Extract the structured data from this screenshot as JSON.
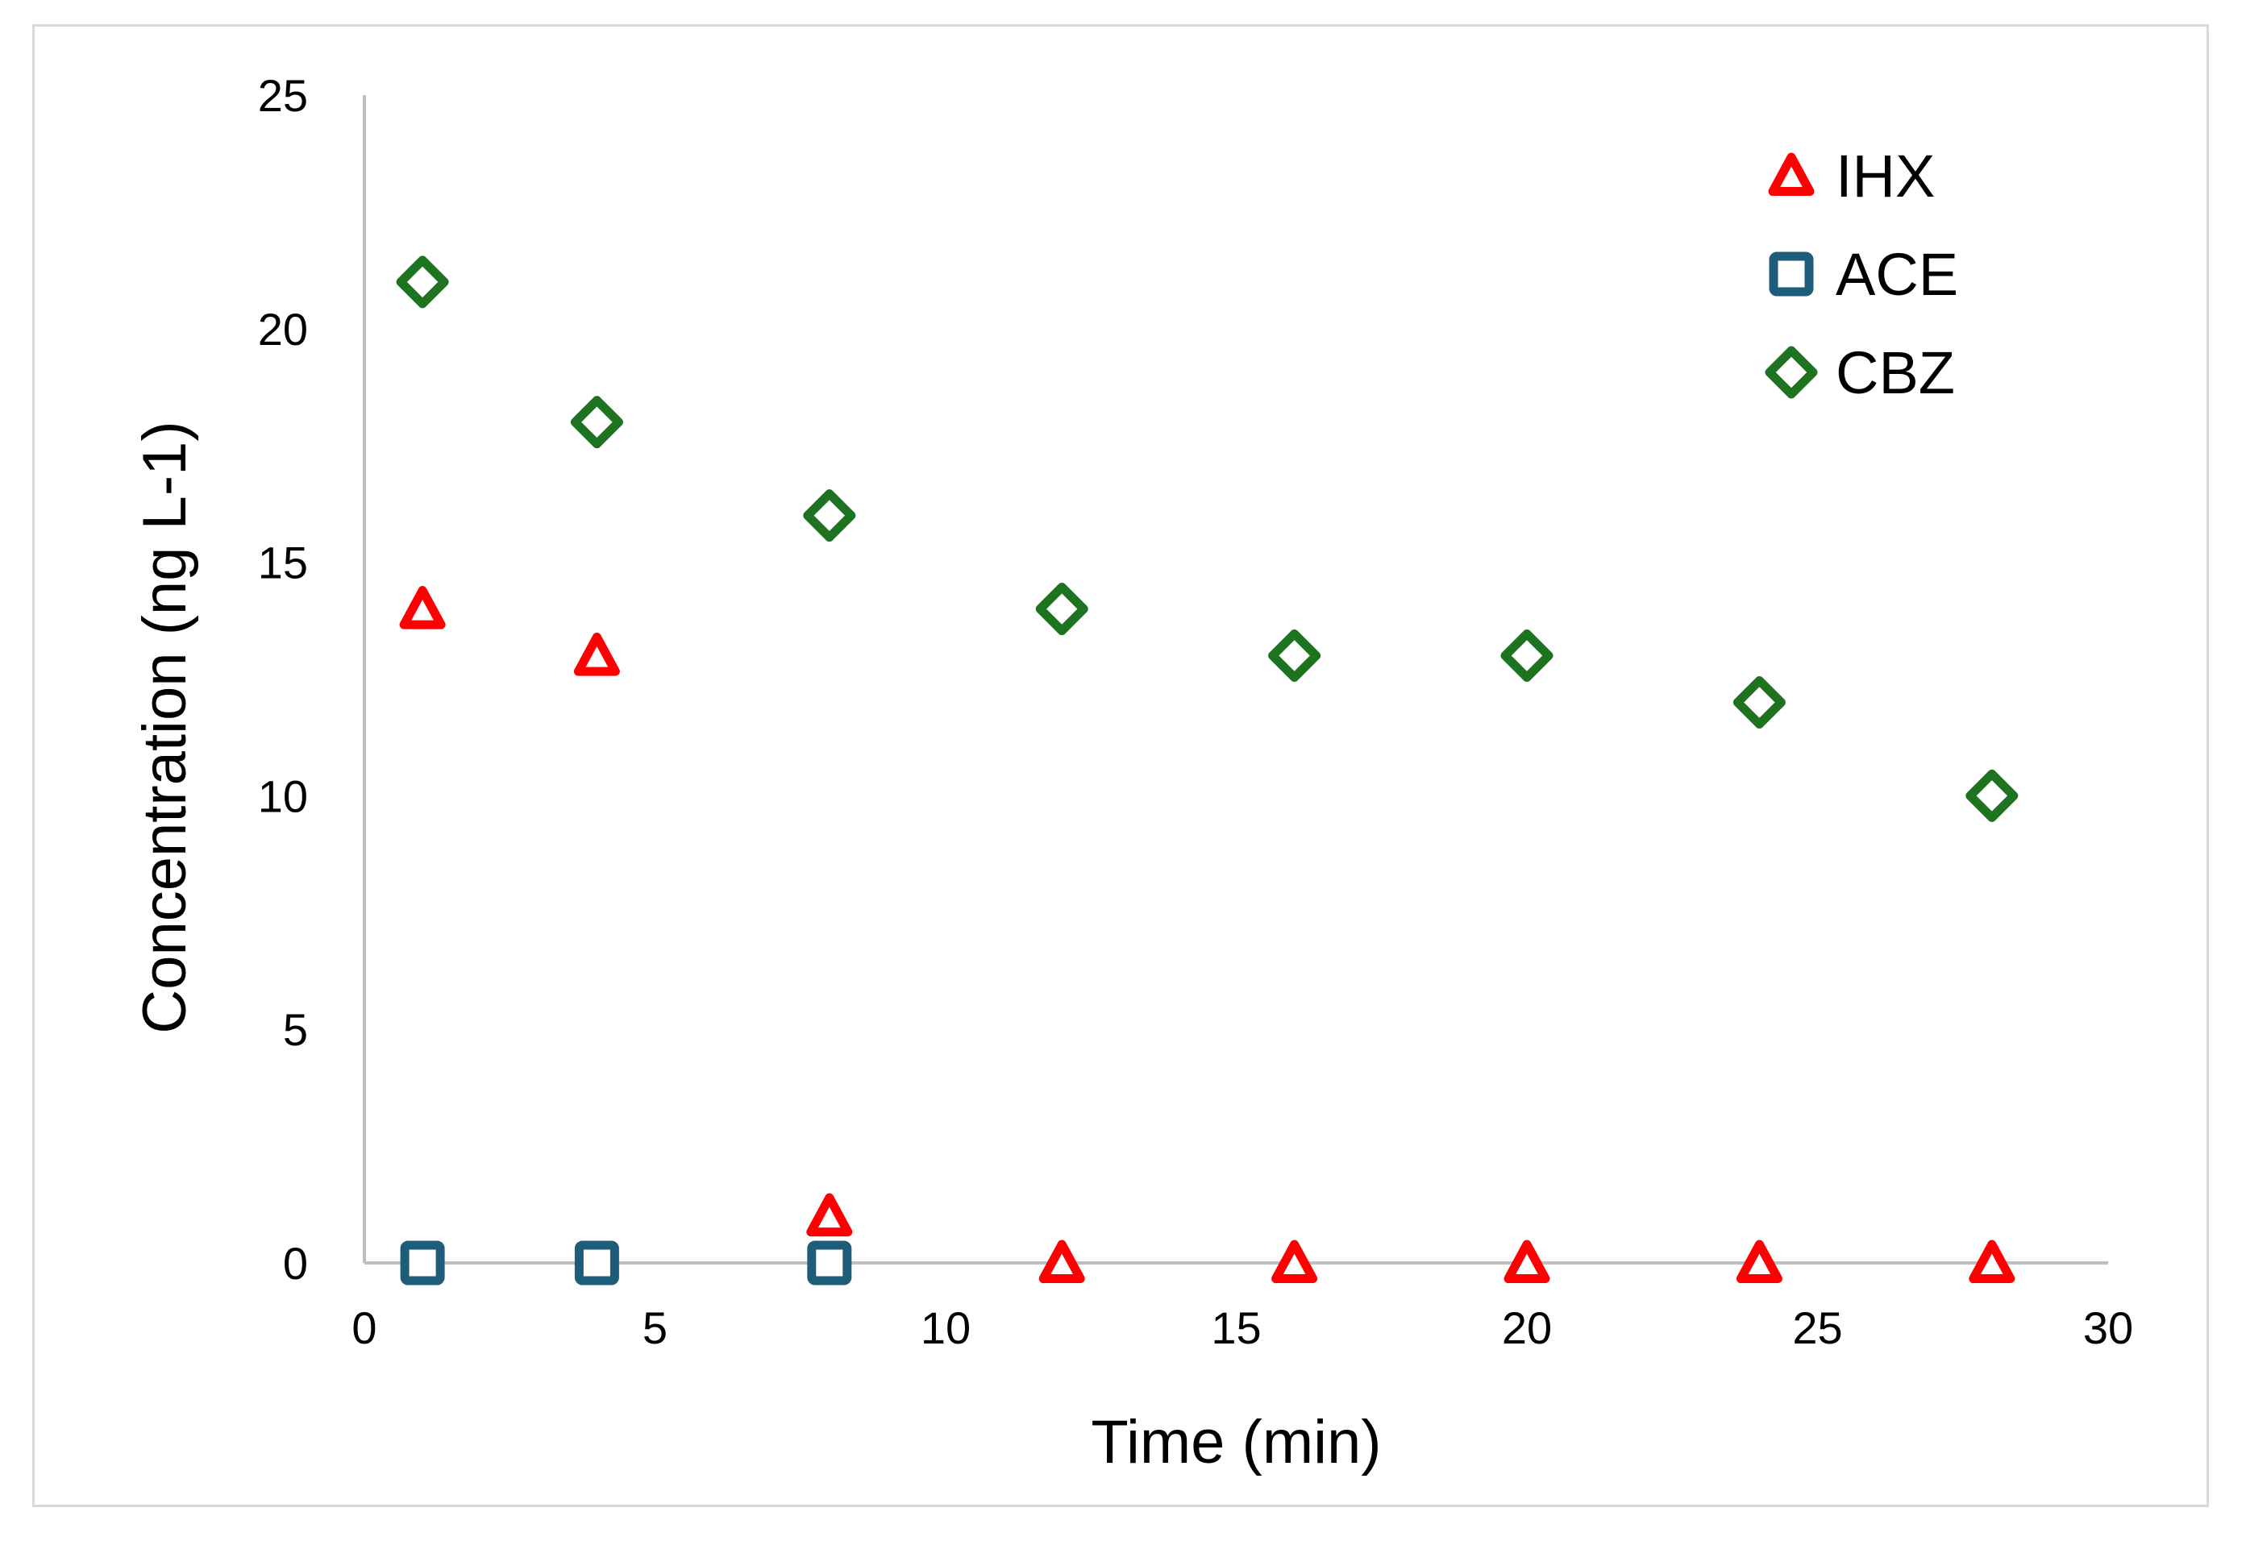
{
  "chart_data": {
    "type": "scatter",
    "title": "",
    "xlabel": "Time (min)",
    "ylabel": "Concentration (ng L-1)",
    "xlim": [
      0,
      30
    ],
    "ylim": [
      0,
      25
    ],
    "xticks": [
      "0",
      "5",
      "10",
      "15",
      "20",
      "25",
      "30"
    ],
    "yticks": [
      "0",
      "5",
      "10",
      "15",
      "20",
      "25"
    ],
    "grid": false,
    "legend_position": "top-right",
    "series": [
      {
        "name": "IHX",
        "marker": "triangle",
        "color": "#ff0000",
        "points": [
          [
            1,
            14
          ],
          [
            4,
            13
          ],
          [
            8,
            1
          ],
          [
            12,
            0
          ],
          [
            16,
            0
          ],
          [
            20,
            0
          ],
          [
            24,
            0
          ],
          [
            28,
            0
          ]
        ]
      },
      {
        "name": "ACE",
        "marker": "square",
        "color": "#1f5c7a",
        "points": [
          [
            1,
            0
          ],
          [
            4,
            0
          ],
          [
            8,
            0
          ]
        ]
      },
      {
        "name": "CBZ",
        "marker": "diamond",
        "color": "#1e7320",
        "points": [
          [
            1,
            21
          ],
          [
            4,
            18
          ],
          [
            8,
            16
          ],
          [
            12,
            14
          ],
          [
            16,
            13
          ],
          [
            20,
            13
          ],
          [
            24,
            12
          ],
          [
            28,
            10
          ]
        ]
      }
    ]
  }
}
